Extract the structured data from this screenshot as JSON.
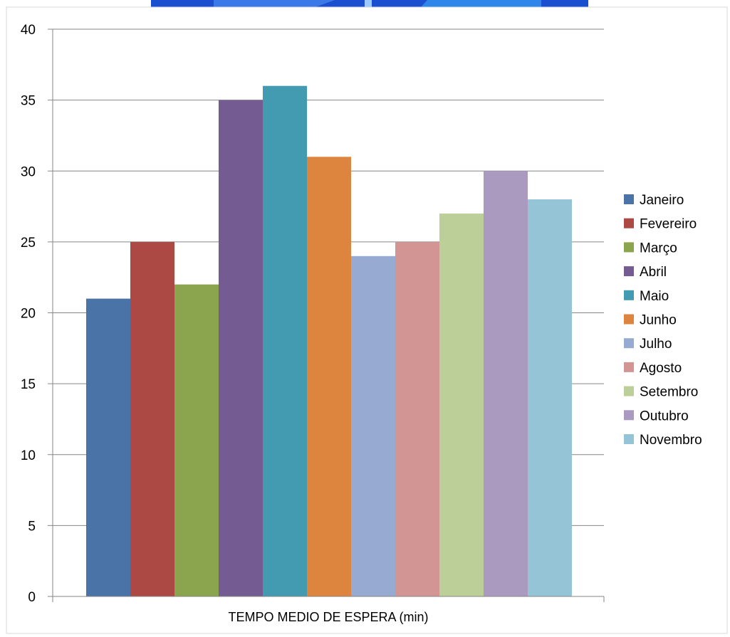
{
  "chart_data": {
    "type": "bar",
    "xlabel": "TEMPO MEDIO DE ESPERA (min)",
    "ylim": [
      0,
      40
    ],
    "yticks": [
      "0",
      "5",
      "10",
      "15",
      "20",
      "25",
      "30",
      "35",
      "40"
    ],
    "grid": true,
    "legend_position": "right",
    "series": [
      {
        "name": "Janeiro",
        "value": 21,
        "color": "#4a73a8"
      },
      {
        "name": "Fevereiro",
        "value": 25,
        "color": "#ad4944"
      },
      {
        "name": "Março",
        "value": 22,
        "color": "#8ba54e"
      },
      {
        "name": "Abril",
        "value": 35,
        "color": "#745b91"
      },
      {
        "name": "Maio",
        "value": 36,
        "color": "#439bb2"
      },
      {
        "name": "Junho",
        "value": 31,
        "color": "#dd843f"
      },
      {
        "name": "Julho",
        "value": 24,
        "color": "#97abd2"
      },
      {
        "name": "Agosto",
        "value": 25,
        "color": "#d29594"
      },
      {
        "name": "Setembro",
        "value": 27,
        "color": "#bccf99"
      },
      {
        "name": "Outubro",
        "value": 30,
        "color": "#aa9abf"
      },
      {
        "name": "Novembro",
        "value": 28,
        "color": "#94c4d6"
      }
    ]
  }
}
